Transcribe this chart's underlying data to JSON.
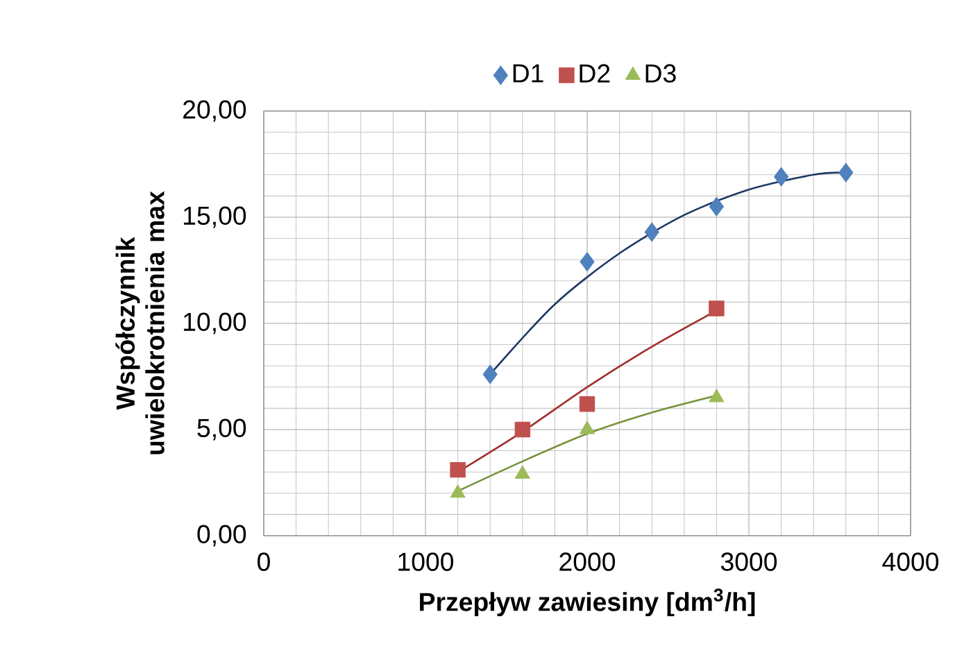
{
  "chart_data": {
    "type": "scatter",
    "xlabel": "Przepływ zawiesiny [dm$^{3}$/h]",
    "ylabel": "Współczynnik uwielokrotnienia max",
    "xlim": [
      0,
      4000
    ],
    "xticks": [
      0,
      1000,
      2000,
      3000,
      4000
    ],
    "ylim": [
      0,
      20
    ],
    "yticks": [
      {
        "value": 0,
        "label": "0,00"
      },
      {
        "value": 5,
        "label": "5,00"
      },
      {
        "value": 10,
        "label": "10,00"
      },
      {
        "value": 15,
        "label": "15,00"
      },
      {
        "value": 20,
        "label": "20,00"
      }
    ],
    "grid": true,
    "legend": "top",
    "series": [
      {
        "name": "D1",
        "color": "#4f81bd",
        "marker": "diamond",
        "x": [
          1400,
          2000,
          2400,
          2800,
          3200,
          3600
        ],
        "values": [
          7.6,
          12.9,
          14.3,
          15.5,
          16.9,
          17.1
        ]
      },
      {
        "name": "D2",
        "color": "#c0504d",
        "marker": "square",
        "x": [
          1200,
          1600,
          2000,
          2800
        ],
        "values": [
          3.1,
          5.0,
          6.2,
          10.7
        ]
      },
      {
        "name": "D3",
        "color": "#9bbb59",
        "marker": "triangle",
        "x": [
          1200,
          1600,
          2000,
          2800
        ],
        "values": [
          2.0,
          2.9,
          5.0,
          6.5
        ]
      },
      {
        "type": "line",
        "color": "#1f3864",
        "marker": "none",
        "x": [
          1400,
          1800,
          2200,
          2600,
          3000,
          3400,
          3600
        ],
        "values": [
          7.6,
          10.9,
          13.3,
          15.1,
          16.3,
          17.0,
          17.1
        ]
      },
      {
        "type": "line",
        "color": "#a0302d",
        "marker": "none",
        "x": [
          1200,
          1600,
          2000,
          2400,
          2800
        ],
        "values": [
          3.0,
          4.9,
          7.0,
          8.9,
          10.6
        ]
      },
      {
        "type": "line",
        "color": "#77933c",
        "marker": "none",
        "x": [
          1200,
          1600,
          2000,
          2400,
          2800
        ],
        "values": [
          2.1,
          3.5,
          4.8,
          5.8,
          6.6
        ]
      }
    ]
  }
}
